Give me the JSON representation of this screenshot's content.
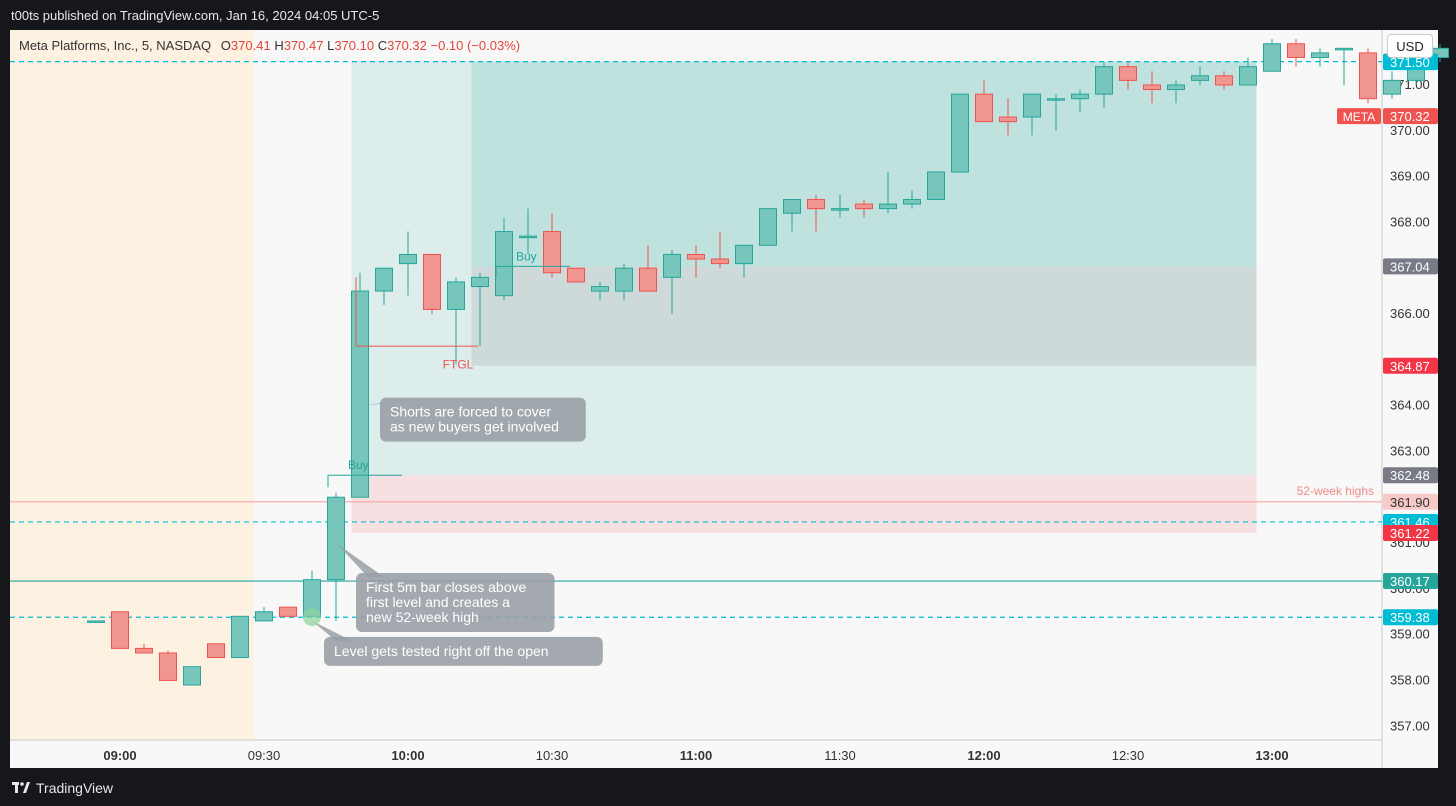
{
  "header": {
    "published": "t00ts published on TradingView.com, Jan 16, 2024 04:05 UTC-5"
  },
  "symbol": {
    "name": "Meta Platforms, Inc., 5, NASDAQ",
    "o_label": "O",
    "o": "370.41",
    "h_label": "H",
    "h": "370.47",
    "l_label": "L",
    "l": "370.10",
    "c_label": "C",
    "c": "370.32",
    "change": "−0.10 (−0.03%)"
  },
  "currency_button": "USD",
  "footer": {
    "brand": "TradingView"
  },
  "colors": {
    "up": "#26a69a",
    "down": "#ef5350",
    "level": "#00bcd4",
    "session_shade": "#fdf1e2"
  },
  "chart_data": {
    "type": "candlestick",
    "interval_minutes": 5,
    "ylim": [
      356.7,
      372.2
    ],
    "y_ticks": [
      "357.00",
      "358.00",
      "359.00",
      "360.00",
      "361.00",
      "363.00",
      "364.00",
      "366.00",
      "368.00",
      "369.00",
      "370.00",
      "371.00"
    ],
    "x_ticks": [
      {
        "label": "09:00",
        "time": "09:00",
        "bold": true
      },
      {
        "label": "09:30",
        "time": "09:30",
        "bold": false
      },
      {
        "label": "10:00",
        "time": "10:00",
        "bold": true
      },
      {
        "label": "10:30",
        "time": "10:30",
        "bold": false
      },
      {
        "label": "11:00",
        "time": "11:00",
        "bold": true
      },
      {
        "label": "11:30",
        "time": "11:30",
        "bold": false
      },
      {
        "label": "12:00",
        "time": "12:00",
        "bold": true
      },
      {
        "label": "12:30",
        "time": "12:30",
        "bold": false
      },
      {
        "label": "13:00",
        "time": "13:00",
        "bold": true
      }
    ],
    "candles": [
      {
        "t": "08:55",
        "o": 359.3,
        "h": 359.3,
        "l": 359.3,
        "c": 359.3
      },
      {
        "t": "09:00",
        "o": 359.5,
        "h": 359.5,
        "l": 358.7,
        "c": 358.7
      },
      {
        "t": "09:05",
        "o": 358.7,
        "h": 358.8,
        "l": 358.6,
        "c": 358.6
      },
      {
        "t": "09:10",
        "o": 358.6,
        "h": 358.65,
        "l": 358.0,
        "c": 358.0
      },
      {
        "t": "09:15",
        "o": 357.9,
        "h": 358.3,
        "l": 357.9,
        "c": 358.3
      },
      {
        "t": "09:20",
        "o": 358.8,
        "h": 358.8,
        "l": 358.5,
        "c": 358.5
      },
      {
        "t": "09:25",
        "o": 358.5,
        "h": 359.4,
        "l": 358.5,
        "c": 359.4
      },
      {
        "t": "09:30",
        "o": 359.3,
        "h": 359.6,
        "l": 359.3,
        "c": 359.5
      },
      {
        "t": "09:35",
        "o": 359.6,
        "h": 359.6,
        "l": 359.4,
        "c": 359.4
      },
      {
        "t": "09:40",
        "o": 359.4,
        "h": 360.4,
        "l": 359.4,
        "c": 360.2
      },
      {
        "t": "09:45",
        "o": 360.2,
        "h": 362.1,
        "l": 359.3,
        "c": 362.0
      },
      {
        "t": "09:50",
        "o": 362.0,
        "h": 366.9,
        "l": 362.0,
        "c": 366.5
      },
      {
        "t": "09:55",
        "o": 366.5,
        "h": 367.0,
        "l": 366.2,
        "c": 367.0
      },
      {
        "t": "10:00",
        "o": 367.1,
        "h": 367.8,
        "l": 366.4,
        "c": 367.3
      },
      {
        "t": "10:05",
        "o": 367.3,
        "h": 367.3,
        "l": 366.0,
        "c": 366.1
      },
      {
        "t": "10:10",
        "o": 366.1,
        "h": 366.8,
        "l": 364.9,
        "c": 366.7
      },
      {
        "t": "10:15",
        "o": 366.6,
        "h": 366.9,
        "l": 365.3,
        "c": 366.8
      },
      {
        "t": "10:20",
        "o": 366.4,
        "h": 368.1,
        "l": 366.3,
        "c": 367.8
      },
      {
        "t": "10:25",
        "o": 367.7,
        "h": 368.3,
        "l": 367.3,
        "c": 367.7
      },
      {
        "t": "10:30",
        "o": 367.8,
        "h": 368.2,
        "l": 366.8,
        "c": 366.9
      },
      {
        "t": "10:35",
        "o": 367.0,
        "h": 367.0,
        "l": 366.7,
        "c": 366.7
      },
      {
        "t": "10:40",
        "o": 366.5,
        "h": 366.7,
        "l": 366.3,
        "c": 366.6
      },
      {
        "t": "10:45",
        "o": 366.5,
        "h": 367.1,
        "l": 366.3,
        "c": 367.0
      },
      {
        "t": "10:50",
        "o": 367.0,
        "h": 367.5,
        "l": 366.6,
        "c": 366.5
      },
      {
        "t": "10:55",
        "o": 366.8,
        "h": 367.4,
        "l": 366.0,
        "c": 367.3
      },
      {
        "t": "11:00",
        "o": 367.3,
        "h": 367.5,
        "l": 366.8,
        "c": 367.2
      },
      {
        "t": "11:05",
        "o": 367.2,
        "h": 367.8,
        "l": 367.0,
        "c": 367.1
      },
      {
        "t": "11:10",
        "o": 367.1,
        "h": 367.5,
        "l": 366.8,
        "c": 367.5
      },
      {
        "t": "11:15",
        "o": 367.5,
        "h": 368.3,
        "l": 367.5,
        "c": 368.3
      },
      {
        "t": "11:20",
        "o": 368.2,
        "h": 368.5,
        "l": 367.8,
        "c": 368.5
      },
      {
        "t": "11:25",
        "o": 368.5,
        "h": 368.6,
        "l": 367.8,
        "c": 368.3
      },
      {
        "t": "11:30",
        "o": 368.3,
        "h": 368.6,
        "l": 368.1,
        "c": 368.3
      },
      {
        "t": "11:35",
        "o": 368.4,
        "h": 368.5,
        "l": 368.1,
        "c": 368.3
      },
      {
        "t": "11:40",
        "o": 368.3,
        "h": 369.1,
        "l": 368.2,
        "c": 368.4
      },
      {
        "t": "11:45",
        "o": 368.4,
        "h": 368.7,
        "l": 368.3,
        "c": 368.5
      },
      {
        "t": "11:50",
        "o": 368.5,
        "h": 369.1,
        "l": 368.5,
        "c": 369.1
      },
      {
        "t": "11:55",
        "o": 369.1,
        "h": 370.8,
        "l": 369.1,
        "c": 370.8
      },
      {
        "t": "12:00",
        "o": 370.8,
        "h": 371.1,
        "l": 370.2,
        "c": 370.2
      },
      {
        "t": "12:05",
        "o": 370.3,
        "h": 370.7,
        "l": 369.9,
        "c": 370.2
      },
      {
        "t": "12:10",
        "o": 370.3,
        "h": 370.8,
        "l": 369.9,
        "c": 370.8
      },
      {
        "t": "12:15",
        "o": 370.7,
        "h": 370.8,
        "l": 370.0,
        "c": 370.7
      },
      {
        "t": "12:20",
        "o": 370.7,
        "h": 370.9,
        "l": 370.4,
        "c": 370.8
      },
      {
        "t": "12:25",
        "o": 370.8,
        "h": 371.5,
        "l": 370.5,
        "c": 371.4
      },
      {
        "t": "12:30",
        "o": 371.4,
        "h": 371.5,
        "l": 370.9,
        "c": 371.1
      },
      {
        "t": "12:35",
        "o": 371.0,
        "h": 371.3,
        "l": 370.6,
        "c": 370.9
      },
      {
        "t": "12:40",
        "o": 370.9,
        "h": 371.1,
        "l": 370.6,
        "c": 371.0
      },
      {
        "t": "12:45",
        "o": 371.1,
        "h": 371.4,
        "l": 371.0,
        "c": 371.2
      },
      {
        "t": "12:50",
        "o": 371.2,
        "h": 371.3,
        "l": 370.9,
        "c": 371.0
      },
      {
        "t": "12:55",
        "o": 371.0,
        "h": 371.6,
        "l": 371.0,
        "c": 371.4
      },
      {
        "t": "13:00",
        "o": 371.3,
        "h": 372.0,
        "l": 371.3,
        "c": 371.9
      },
      {
        "t": "13:05",
        "o": 371.9,
        "h": 372.0,
        "l": 371.4,
        "c": 371.6
      },
      {
        "t": "13:10",
        "o": 371.6,
        "h": 371.8,
        "l": 371.4,
        "c": 371.7
      },
      {
        "t": "13:15",
        "o": 371.8,
        "h": 371.8,
        "l": 371.0,
        "c": 371.8
      },
      {
        "t": "13:20",
        "o": 371.7,
        "h": 371.8,
        "l": 370.6,
        "c": 370.7
      },
      {
        "t": "13:25",
        "o": 370.8,
        "h": 371.3,
        "l": 370.7,
        "c": 371.1
      },
      {
        "t": "13:30",
        "o": 371.1,
        "h": 371.8,
        "l": 371.0,
        "c": 371.6
      },
      {
        "t": "13:35",
        "o": 371.6,
        "h": 371.9,
        "l": 371.5,
        "c": 371.8
      }
    ],
    "price_labels": [
      {
        "value": "371.51",
        "price": 371.51,
        "bg": "#26a69a",
        "fg": "#ffffff"
      },
      {
        "value": "371.50",
        "price": 371.5,
        "bg": "#00bcd4",
        "fg": "#ffffff"
      },
      {
        "value": "370.32",
        "price": 370.32,
        "bg": "#ef5350",
        "fg": "#ffffff",
        "tag": "META"
      },
      {
        "value": "367.04",
        "price": 367.04,
        "bg": "#787b86",
        "fg": "#ffffff"
      },
      {
        "value": "364.87",
        "price": 364.87,
        "bg": "#f23645",
        "fg": "#ffffff"
      },
      {
        "value": "362.48",
        "price": 362.48,
        "bg": "#787b86",
        "fg": "#ffffff"
      },
      {
        "value": "361.90",
        "price": 361.9,
        "bg": "#f7c9c7",
        "fg": "#333333"
      },
      {
        "value": "361.46",
        "price": 361.46,
        "bg": "#00bcd4",
        "fg": "#ffffff"
      },
      {
        "value": "361.22",
        "price": 361.22,
        "bg": "#f23645",
        "fg": "#ffffff"
      },
      {
        "value": "360.17",
        "price": 360.17,
        "bg": "#26a69a",
        "fg": "#ffffff"
      },
      {
        "value": "359.38",
        "price": 359.38,
        "bg": "#00bcd4",
        "fg": "#ffffff"
      }
    ],
    "horizontal_lines": [
      {
        "price": 371.51,
        "style": "dashed",
        "color": "#00bcd4"
      },
      {
        "price": 361.9,
        "style": "solid",
        "color": "#f4a6a2",
        "label": "52-week highs"
      },
      {
        "price": 361.46,
        "style": "dashed",
        "color": "#00bcd4"
      },
      {
        "price": 360.17,
        "style": "solid",
        "color": "#26a69a"
      },
      {
        "price": 359.38,
        "style": "dashed",
        "color": "#00bcd4"
      }
    ],
    "positions": [
      {
        "entry_time": "09:50",
        "end_time": "12:55",
        "entry": 362.48,
        "stop": 361.22,
        "target": 371.51
      },
      {
        "entry_time": "10:15",
        "end_time": "12:55",
        "entry": 367.04,
        "stop": 364.87,
        "target": 371.51
      }
    ],
    "markers": [
      {
        "text": "Buy",
        "time": "09:45",
        "price": 362.48,
        "color": "#26a69a"
      },
      {
        "text": "Buy",
        "time": "10:20",
        "price": 367.04,
        "color": "#26a69a"
      },
      {
        "text": "FTGL",
        "time": "10:10",
        "price": 365.3,
        "color": "#ef5350"
      }
    ],
    "callouts": [
      {
        "lines": [
          "Shorts are forced to cover",
          "as new buyers get involved"
        ],
        "time": "09:50",
        "price": 364.0
      },
      {
        "lines": [
          "First 5m bar closes above",
          "first level and creates a",
          "new 52-week high"
        ],
        "time": "09:45",
        "price": 361.0
      },
      {
        "lines": [
          "Level gets tested right off the open"
        ],
        "time": "09:40",
        "price": 359.3
      }
    ]
  }
}
